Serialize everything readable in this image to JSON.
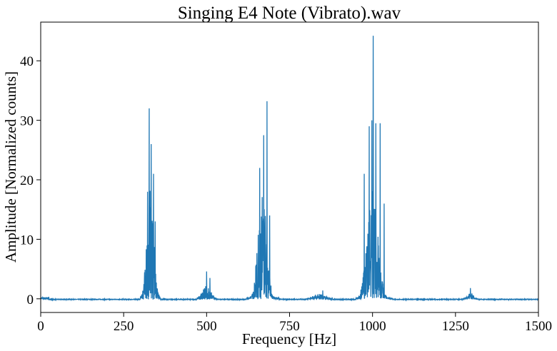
{
  "chart_data": {
    "type": "line",
    "title": "Singing E4 Note (Vibrato).wav",
    "xlabel": "Frequency [Hz]",
    "ylabel": "Amplitude [Normalized counts]",
    "xlim": [
      0,
      1500
    ],
    "ylim": [
      -2.3,
      46.5
    ],
    "xticks": [
      0,
      250,
      500,
      750,
      1000,
      1250,
      1500
    ],
    "yticks": [
      0,
      10,
      20,
      30,
      40
    ],
    "grid": false,
    "line_color": "#1f77b4",
    "baseline": -0.1,
    "peaks": [
      {
        "x": 327,
        "y": 32.0
      },
      {
        "x": 333,
        "y": 26.0
      },
      {
        "x": 322,
        "y": 18.0
      },
      {
        "x": 340,
        "y": 21.0
      },
      {
        "x": 345,
        "y": 13.0
      },
      {
        "x": 500,
        "y": 4.6
      },
      {
        "x": 510,
        "y": 3.5
      },
      {
        "x": 660,
        "y": 22.0
      },
      {
        "x": 672,
        "y": 27.5
      },
      {
        "x": 682,
        "y": 33.2
      },
      {
        "x": 690,
        "y": 14.0
      },
      {
        "x": 648,
        "y": 5.5
      },
      {
        "x": 975,
        "y": 21.0
      },
      {
        "x": 990,
        "y": 29.0
      },
      {
        "x": 998,
        "y": 30.0
      },
      {
        "x": 1002,
        "y": 44.2
      },
      {
        "x": 1010,
        "y": 29.5
      },
      {
        "x": 1023,
        "y": 29.5
      },
      {
        "x": 1035,
        "y": 16.0
      },
      {
        "x": 850,
        "y": 1.4
      },
      {
        "x": 1295,
        "y": 1.8
      }
    ],
    "bands": [
      {
        "center": 330,
        "width": 14,
        "amp": 20,
        "lo": 300,
        "hi": 360
      },
      {
        "center": 500,
        "width": 18,
        "amp": 2.2,
        "lo": 470,
        "hi": 530
      },
      {
        "center": 668,
        "width": 18,
        "amp": 18,
        "lo": 620,
        "hi": 720
      },
      {
        "center": 1000,
        "width": 22,
        "amp": 20,
        "lo": 950,
        "hi": 1060
      },
      {
        "center": 840,
        "width": 25,
        "amp": 0.9,
        "lo": 800,
        "hi": 880
      },
      {
        "center": 1295,
        "width": 12,
        "amp": 1.2,
        "lo": 1270,
        "hi": 1320
      }
    ]
  }
}
